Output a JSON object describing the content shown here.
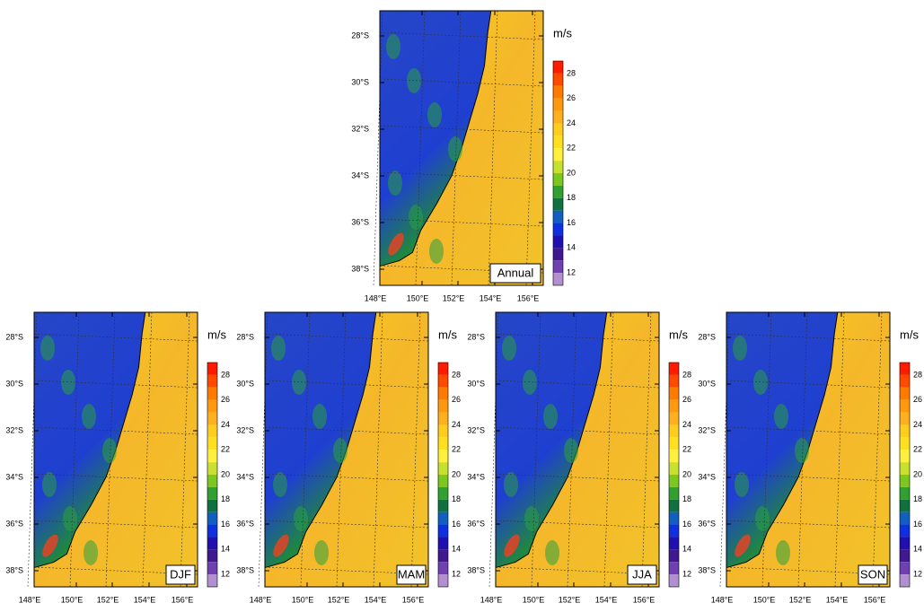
{
  "panels": [
    {
      "label": "Annual"
    },
    {
      "label": "DJF"
    },
    {
      "label": "MAM"
    },
    {
      "label": "JJA"
    },
    {
      "label": "SON"
    }
  ],
  "lat_labels": [
    "28°S",
    "30°S",
    "32°S",
    "34°S",
    "36°S",
    "38°S"
  ],
  "lon_labels": [
    "148°E",
    "150°E",
    "152°E",
    "154°E",
    "156°E"
  ],
  "colorbar": {
    "unit": "m/s",
    "labels": [
      28,
      26,
      24,
      22,
      20,
      18,
      16,
      14,
      12
    ]
  }
}
